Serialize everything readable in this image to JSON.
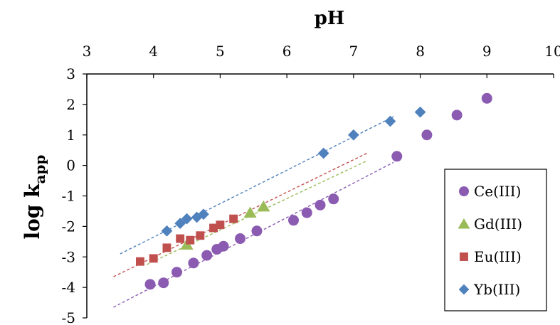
{
  "chart_data": {
    "type": "scatter",
    "title": "",
    "xlabel": "pH",
    "ylabel": {
      "main": "log k",
      "sub": "app"
    },
    "xlim": [
      3,
      10
    ],
    "ylim": [
      -5,
      3
    ],
    "x_ticks": [
      "3",
      "4",
      "5",
      "6",
      "7",
      "8",
      "9",
      "10"
    ],
    "y_ticks": [
      "3",
      "2",
      "1",
      "0",
      "-1",
      "-2",
      "-3",
      "-4",
      "-5"
    ],
    "legend_position": "bottom-right",
    "grid": false,
    "series": [
      {
        "name": "Ce(III)",
        "marker": "circle",
        "color": "#8b5bb2",
        "points": [
          [
            3.95,
            -3.9
          ],
          [
            4.15,
            -3.85
          ],
          [
            4.35,
            -3.5
          ],
          [
            4.6,
            -3.2
          ],
          [
            4.8,
            -2.95
          ],
          [
            4.95,
            -2.75
          ],
          [
            5.05,
            -2.65
          ],
          [
            5.3,
            -2.4
          ],
          [
            5.55,
            -2.15
          ],
          [
            6.1,
            -1.8
          ],
          [
            6.3,
            -1.55
          ],
          [
            6.5,
            -1.3
          ],
          [
            6.7,
            -1.1
          ],
          [
            7.65,
            0.3
          ],
          [
            8.1,
            1.0
          ],
          [
            8.55,
            1.65
          ],
          [
            9.0,
            2.2
          ]
        ],
        "fit": [
          [
            3.4,
            -4.65
          ],
          [
            7.6,
            0.1
          ]
        ]
      },
      {
        "name": "Gd(III)",
        "marker": "triangle",
        "color": "#9bbb59",
        "points": [
          [
            4.5,
            -2.6
          ],
          [
            5.45,
            -1.55
          ],
          [
            5.65,
            -1.35
          ]
        ],
        "fit": [
          [
            3.9,
            -3.25
          ],
          [
            7.2,
            0.15
          ]
        ]
      },
      {
        "name": "Eu(III)",
        "marker": "square",
        "color": "#c0504d",
        "points": [
          [
            3.8,
            -3.15
          ],
          [
            4.0,
            -3.05
          ],
          [
            4.2,
            -2.7
          ],
          [
            4.4,
            -2.4
          ],
          [
            4.55,
            -2.45
          ],
          [
            4.7,
            -2.3
          ],
          [
            4.9,
            -2.05
          ],
          [
            5.0,
            -1.95
          ],
          [
            5.2,
            -1.75
          ]
        ],
        "fit": [
          [
            3.4,
            -3.65
          ],
          [
            7.2,
            0.4
          ]
        ]
      },
      {
        "name": "Yb(III)",
        "marker": "diamond",
        "color": "#4f81bd",
        "points": [
          [
            4.2,
            -2.15
          ],
          [
            4.4,
            -1.9
          ],
          [
            4.5,
            -1.75
          ],
          [
            4.65,
            -1.7
          ],
          [
            4.75,
            -1.6
          ],
          [
            6.55,
            0.4
          ],
          [
            7.0,
            1.0
          ],
          [
            7.55,
            1.45
          ],
          [
            8.0,
            1.75
          ]
        ],
        "fit": [
          [
            3.5,
            -2.9
          ],
          [
            7.6,
            1.6
          ]
        ]
      }
    ]
  }
}
